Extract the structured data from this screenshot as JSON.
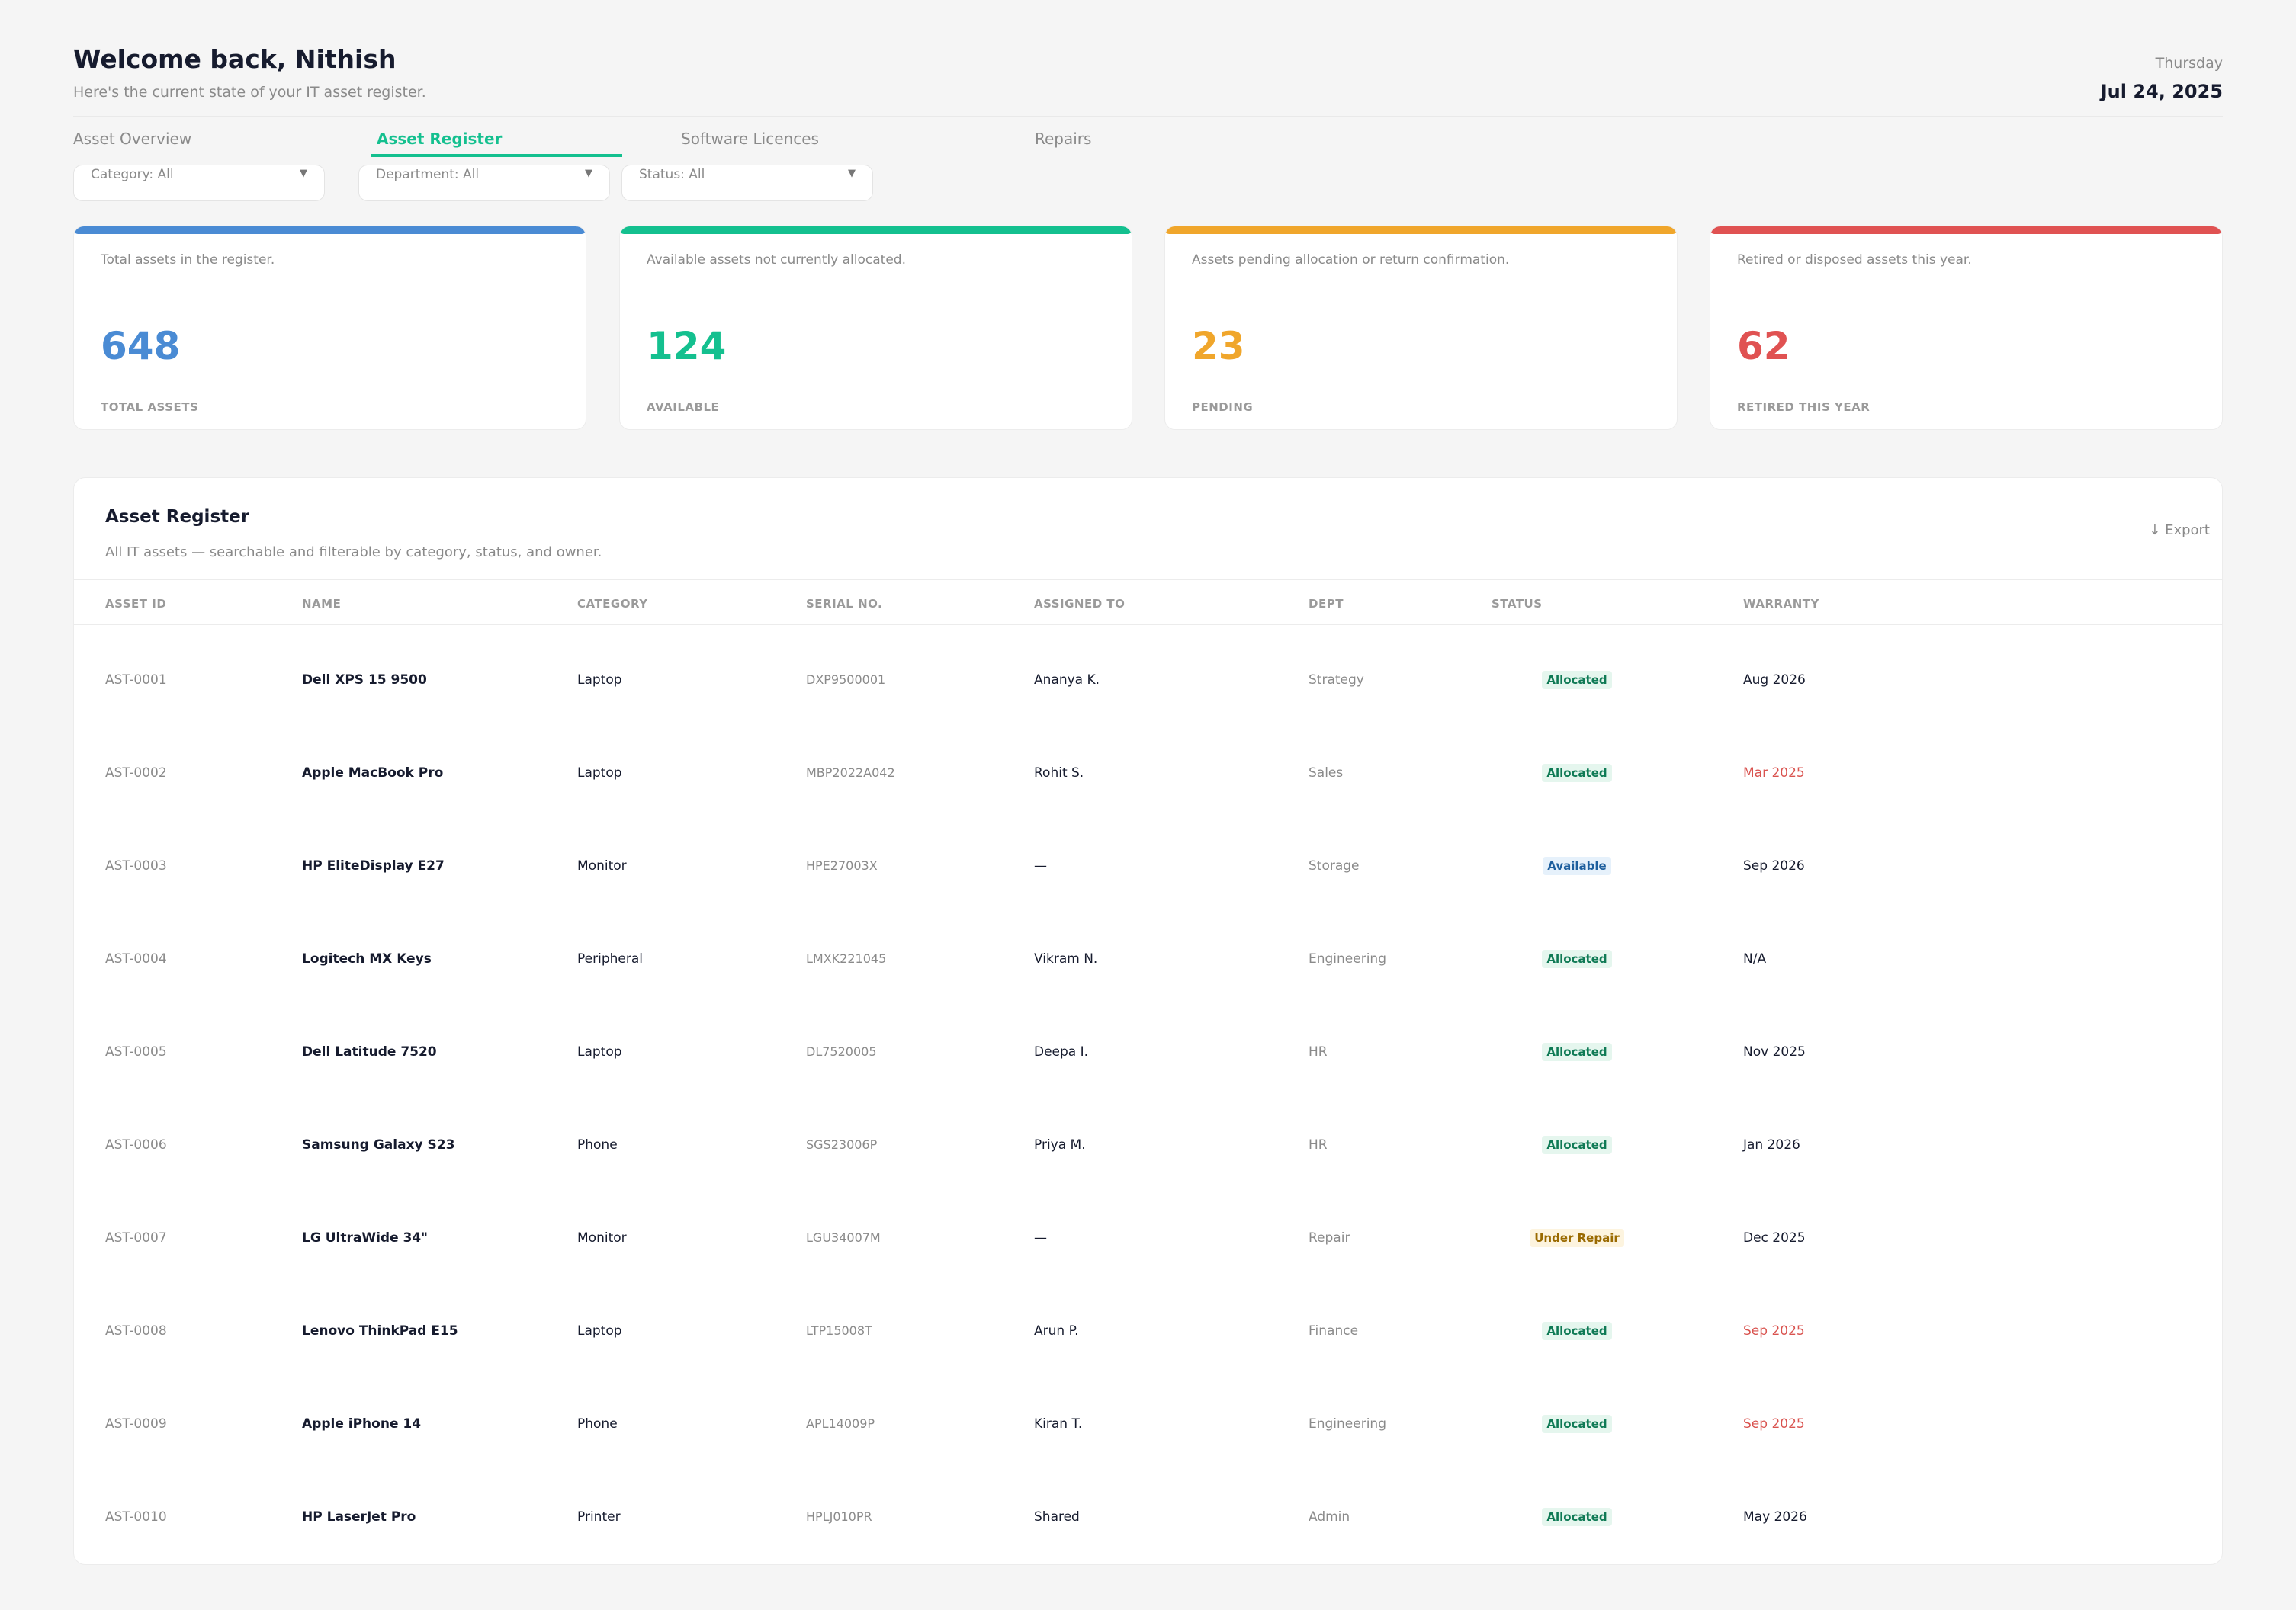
{
  "header": {
    "title": "Welcome back, Nithish",
    "subtitle": "Here's the current state of your IT asset register.",
    "weekday": "Thursday",
    "date": "Jul 24, 2025"
  },
  "tabs": [
    {
      "label": "Asset Overview",
      "active": false
    },
    {
      "label": "Asset Register",
      "active": true
    },
    {
      "label": "Software Licences",
      "active": false
    },
    {
      "label": "Repairs",
      "active": false
    }
  ],
  "filters": [
    {
      "label": "Category: All"
    },
    {
      "label": "Department: All"
    },
    {
      "label": "Status: All"
    }
  ],
  "colors": {
    "accent": "#14c08f",
    "blue": "#4a8bd4",
    "green": "#14c08f",
    "orange": "#f0a62b",
    "red": "#e05252"
  },
  "stats": [
    {
      "description": "Total assets in the register.",
      "value": "648",
      "caption": "TOTAL ASSETS",
      "color": "#4a8bd4"
    },
    {
      "description": "Available assets not currently allocated.",
      "value": "124",
      "caption": "AVAILABLE",
      "color": "#14c08f"
    },
    {
      "description": "Assets pending allocation or return confirmation.",
      "value": "23",
      "caption": "PENDING",
      "color": "#f0a62b"
    },
    {
      "description": "Retired or disposed assets this year.",
      "value": "62",
      "caption": "RETIRED THIS YEAR",
      "color": "#e05252"
    }
  ],
  "register": {
    "title": "Asset Register",
    "subtitle": "All IT assets — searchable and filterable by category, status, and owner.",
    "export_label": "↓ Export",
    "columns": [
      "ASSET ID",
      "NAME",
      "CATEGORY",
      "SERIAL NO.",
      "ASSIGNED TO",
      "DEPT",
      "STATUS",
      "WARRANTY"
    ],
    "rows": [
      {
        "id": "AST-0001",
        "name": "Dell XPS 15 9500",
        "category": "Laptop",
        "serial": "DXP9500001",
        "assigned": "Ananya K.",
        "dept": "Strategy",
        "status": "Allocated",
        "status_kind": "allocated",
        "warranty": "Aug 2026",
        "warranty_expired": false
      },
      {
        "id": "AST-0002",
        "name": "Apple MacBook Pro",
        "category": "Laptop",
        "serial": "MBP2022A042",
        "assigned": "Rohit S.",
        "dept": "Sales",
        "status": "Allocated",
        "status_kind": "allocated",
        "warranty": "Mar 2025",
        "warranty_expired": true
      },
      {
        "id": "AST-0003",
        "name": "HP EliteDisplay E27",
        "category": "Monitor",
        "serial": "HPE27003X",
        "assigned": "—",
        "dept": "Storage",
        "status": "Available",
        "status_kind": "available",
        "warranty": "Sep 2026",
        "warranty_expired": false
      },
      {
        "id": "AST-0004",
        "name": "Logitech MX Keys",
        "category": "Peripheral",
        "serial": "LMXK221045",
        "assigned": "Vikram N.",
        "dept": "Engineering",
        "status": "Allocated",
        "status_kind": "allocated",
        "warranty": "N/A",
        "warranty_expired": false
      },
      {
        "id": "AST-0005",
        "name": "Dell Latitude 7520",
        "category": "Laptop",
        "serial": "DL7520005",
        "assigned": "Deepa I.",
        "dept": "HR",
        "status": "Allocated",
        "status_kind": "allocated",
        "warranty": "Nov 2025",
        "warranty_expired": false
      },
      {
        "id": "AST-0006",
        "name": "Samsung Galaxy S23",
        "category": "Phone",
        "serial": "SGS23006P",
        "assigned": "Priya M.",
        "dept": "HR",
        "status": "Allocated",
        "status_kind": "allocated",
        "warranty": "Jan 2026",
        "warranty_expired": false
      },
      {
        "id": "AST-0007",
        "name": "LG UltraWide 34\"",
        "category": "Monitor",
        "serial": "LGU34007M",
        "assigned": "—",
        "dept": "Repair",
        "status": "Under Repair",
        "status_kind": "repair",
        "warranty": "Dec 2025",
        "warranty_expired": false
      },
      {
        "id": "AST-0008",
        "name": "Lenovo ThinkPad E15",
        "category": "Laptop",
        "serial": "LTP15008T",
        "assigned": "Arun P.",
        "dept": "Finance",
        "status": "Allocated",
        "status_kind": "allocated",
        "warranty": "Sep 2025",
        "warranty_expired": true
      },
      {
        "id": "AST-0009",
        "name": "Apple iPhone 14",
        "category": "Phone",
        "serial": "APL14009P",
        "assigned": "Kiran T.",
        "dept": "Engineering",
        "status": "Allocated",
        "status_kind": "allocated",
        "warranty": "Sep 2025",
        "warranty_expired": true
      },
      {
        "id": "AST-0010",
        "name": "HP LaserJet Pro",
        "category": "Printer",
        "serial": "HPLJ010PR",
        "assigned": "Shared",
        "dept": "Admin",
        "status": "Allocated",
        "status_kind": "allocated",
        "warranty": "May 2026",
        "warranty_expired": false
      }
    ]
  }
}
